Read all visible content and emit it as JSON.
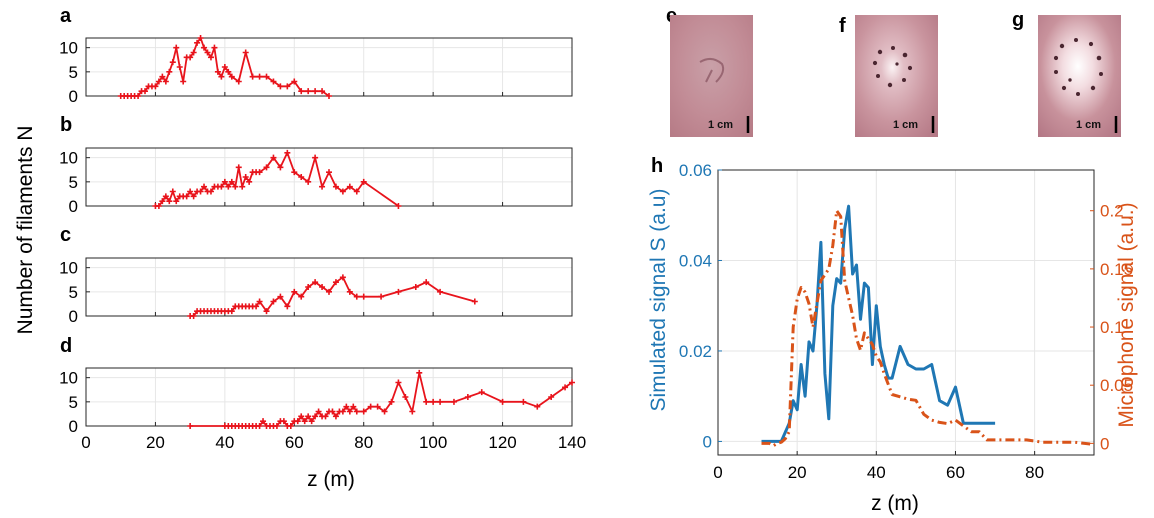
{
  "figure": {
    "shared_ylabel": "Number of filaments N",
    "left_xlabel": "z (m)",
    "scale_bar_text": "1 cm",
    "colors": {
      "red": "#e8141c",
      "blue": "#1f77b4",
      "orange": "#d95319",
      "grid": "#e6e6e6"
    }
  },
  "chart_data": [
    {
      "type": "line",
      "panel": "a",
      "xlim": [
        0,
        140
      ],
      "ylim": [
        0,
        12
      ],
      "xticks": [],
      "yticks": [
        0,
        5,
        10
      ],
      "grid": true,
      "marker": "+",
      "x": [
        10,
        11,
        12,
        13,
        14,
        15,
        16,
        17,
        18,
        19,
        20,
        21,
        22,
        23,
        24,
        25,
        26,
        27,
        28,
        29,
        30,
        31,
        32,
        33,
        34,
        35,
        36,
        37,
        38,
        39,
        40,
        41,
        42,
        44,
        46,
        48,
        50,
        52,
        54,
        56,
        58,
        60,
        62,
        64,
        66,
        68,
        70
      ],
      "y": [
        0,
        0,
        0,
        0,
        0,
        0,
        1,
        1,
        2,
        2,
        2,
        3,
        4,
        3,
        5,
        7,
        10,
        6,
        3,
        8,
        8,
        9,
        11,
        12,
        10,
        9,
        8,
        10,
        5,
        4,
        6,
        5,
        4,
        3,
        9,
        4,
        4,
        4,
        3,
        2,
        2,
        3,
        1,
        1,
        1,
        1,
        0
      ]
    },
    {
      "type": "line",
      "panel": "b",
      "xlim": [
        0,
        140
      ],
      "ylim": [
        0,
        12
      ],
      "xticks": [],
      "yticks": [
        0,
        5,
        10
      ],
      "grid": true,
      "marker": "+",
      "x": [
        20,
        21,
        22,
        23,
        24,
        25,
        26,
        27,
        28,
        29,
        30,
        31,
        32,
        33,
        34,
        35,
        36,
        37,
        38,
        39,
        40,
        41,
        42,
        43,
        44,
        45,
        46,
        47,
        48,
        49,
        50,
        52,
        54,
        56,
        58,
        60,
        62,
        64,
        66,
        68,
        70,
        72,
        74,
        76,
        78,
        80,
        90
      ],
      "y": [
        0,
        0,
        1,
        2,
        1,
        3,
        1,
        2,
        2,
        2,
        3,
        2,
        3,
        3,
        4,
        3,
        3,
        4,
        4,
        4,
        5,
        4,
        5,
        4,
        8,
        4,
        6,
        5,
        7,
        7,
        7,
        8,
        10,
        8,
        11,
        7,
        6,
        5,
        10,
        4,
        7,
        4,
        3,
        4,
        3,
        5,
        0
      ]
    },
    {
      "type": "line",
      "panel": "c",
      "xlim": [
        0,
        140
      ],
      "ylim": [
        0,
        12
      ],
      "xticks": [],
      "yticks": [
        0,
        5,
        10
      ],
      "grid": true,
      "marker": "+",
      "x": [
        30,
        31,
        32,
        33,
        34,
        35,
        36,
        37,
        38,
        39,
        40,
        41,
        42,
        43,
        44,
        45,
        46,
        47,
        48,
        49,
        50,
        52,
        54,
        56,
        58,
        60,
        62,
        64,
        66,
        68,
        70,
        72,
        74,
        76,
        78,
        80,
        85,
        90,
        95,
        98,
        102,
        112
      ],
      "y": [
        0,
        0,
        1,
        1,
        1,
        1,
        1,
        1,
        1,
        1,
        1,
        1,
        1,
        2,
        2,
        2,
        2,
        2,
        2,
        2,
        3,
        1,
        3,
        4,
        2,
        5,
        4,
        6,
        7,
        6,
        5,
        7,
        8,
        5,
        4,
        4,
        4,
        5,
        6,
        7,
        5,
        3
      ]
    },
    {
      "type": "line",
      "panel": "d",
      "xlim": [
        0,
        140
      ],
      "ylim": [
        0,
        12
      ],
      "xticks": [
        0,
        20,
        40,
        60,
        80,
        100,
        120,
        140
      ],
      "yticks": [
        0,
        5,
        10
      ],
      "grid": true,
      "marker": "+",
      "xlabel": "z (m)",
      "x": [
        30,
        40,
        41,
        42,
        43,
        44,
        45,
        46,
        47,
        48,
        49,
        50,
        51,
        52,
        53,
        54,
        55,
        56,
        57,
        58,
        59,
        60,
        61,
        62,
        63,
        64,
        65,
        66,
        67,
        68,
        69,
        70,
        71,
        72,
        73,
        74,
        75,
        76,
        77,
        78,
        80,
        82,
        84,
        86,
        88,
        90,
        92,
        94,
        96,
        98,
        100,
        102,
        106,
        110,
        114,
        120,
        126,
        130,
        134,
        138,
        140
      ],
      "y": [
        0,
        0,
        0,
        0,
        0,
        0,
        0,
        0,
        0,
        0,
        0,
        0,
        1,
        0,
        0,
        0,
        0,
        1,
        1,
        0,
        0,
        1,
        1,
        2,
        1,
        2,
        1,
        2,
        3,
        2,
        2,
        3,
        3,
        2,
        3,
        3,
        4,
        3,
        4,
        3,
        3,
        4,
        4,
        3,
        5,
        9,
        6,
        3,
        11,
        5,
        5,
        5,
        5,
        6,
        7,
        5,
        5,
        4,
        6,
        8,
        9
      ]
    },
    {
      "type": "line",
      "panel": "h",
      "xlim": [
        0,
        95
      ],
      "ylim_left": [
        -0.003,
        0.06
      ],
      "ylim_right": [
        -0.01,
        0.235
      ],
      "xticks": [
        0,
        20,
        40,
        60,
        80
      ],
      "yticks_left": [
        0,
        0.02,
        0.04,
        0.06
      ],
      "yticks_left_labels": [
        "0",
        "0.02",
        "0.04",
        "0.06"
      ],
      "yticks_right": [
        0,
        0.05,
        0.1,
        0.15,
        0.2
      ],
      "yticks_right_labels": [
        "0",
        "0.05",
        "0.1",
        "0.15",
        "0.2"
      ],
      "grid": true,
      "xlabel": "z (m)",
      "ylabel_left": "Simulated signal S (a.u)",
      "ylabel_right": "Microphone signal (a.u.)",
      "series": [
        {
          "axis": "left",
          "style": "solid",
          "color": "#1f77b4",
          "x": [
            11,
            16,
            18,
            19,
            20,
            21,
            22,
            23,
            24,
            25,
            26,
            27,
            28,
            29,
            30,
            31,
            32,
            33,
            34,
            35,
            36,
            37,
            38,
            39,
            40,
            41,
            42,
            43,
            44,
            46,
            48,
            50,
            52,
            54,
            56,
            58,
            60,
            62,
            64,
            66,
            68,
            70
          ],
          "y": [
            0,
            0,
            0.004,
            0.009,
            0.007,
            0.017,
            0.01,
            0.022,
            0.02,
            0.03,
            0.044,
            0.015,
            0.005,
            0.03,
            0.036,
            0.035,
            0.047,
            0.052,
            0.037,
            0.039,
            0.027,
            0.035,
            0.034,
            0.017,
            0.03,
            0.021,
            0.017,
            0.014,
            0.014,
            0.021,
            0.017,
            0.016,
            0.016,
            0.017,
            0.009,
            0.008,
            0.012,
            0.004,
            0.004,
            0.004,
            0.004,
            0.004
          ]
        },
        {
          "axis": "right",
          "style": "dashdot",
          "color": "#d95319",
          "x": [
            11,
            13,
            14,
            15,
            16,
            17,
            18,
            19,
            20,
            21,
            22,
            23,
            24,
            25,
            26,
            27,
            28,
            29,
            30,
            31,
            32,
            33,
            34,
            35,
            36,
            37,
            38,
            39,
            40,
            41,
            42,
            44,
            46,
            48,
            50,
            52,
            54,
            56,
            58,
            60,
            62,
            64,
            66,
            68,
            70,
            74,
            78,
            82,
            86,
            90,
            95
          ],
          "y": [
            0,
            0,
            -0.002,
            0,
            0.001,
            0.004,
            0.01,
            0.1,
            0.124,
            0.134,
            0.13,
            0.12,
            0.1,
            0.12,
            0.14,
            0.145,
            0.15,
            0.17,
            0.2,
            0.195,
            0.14,
            0.125,
            0.11,
            0.09,
            0.08,
            0.095,
            0.09,
            0.085,
            0.075,
            0.07,
            0.06,
            0.042,
            0.04,
            0.038,
            0.037,
            0.025,
            0.02,
            0.018,
            0.017,
            0.02,
            0.015,
            0.01,
            0.01,
            0.003,
            0.003,
            0.003,
            0.003,
            0.001,
            0.001,
            0.001,
            -0.001
          ]
        }
      ]
    }
  ],
  "images": [
    {
      "label": "e",
      "variant": "faint"
    },
    {
      "label": "f",
      "variant": "ring"
    },
    {
      "label": "g",
      "variant": "bright"
    }
  ]
}
